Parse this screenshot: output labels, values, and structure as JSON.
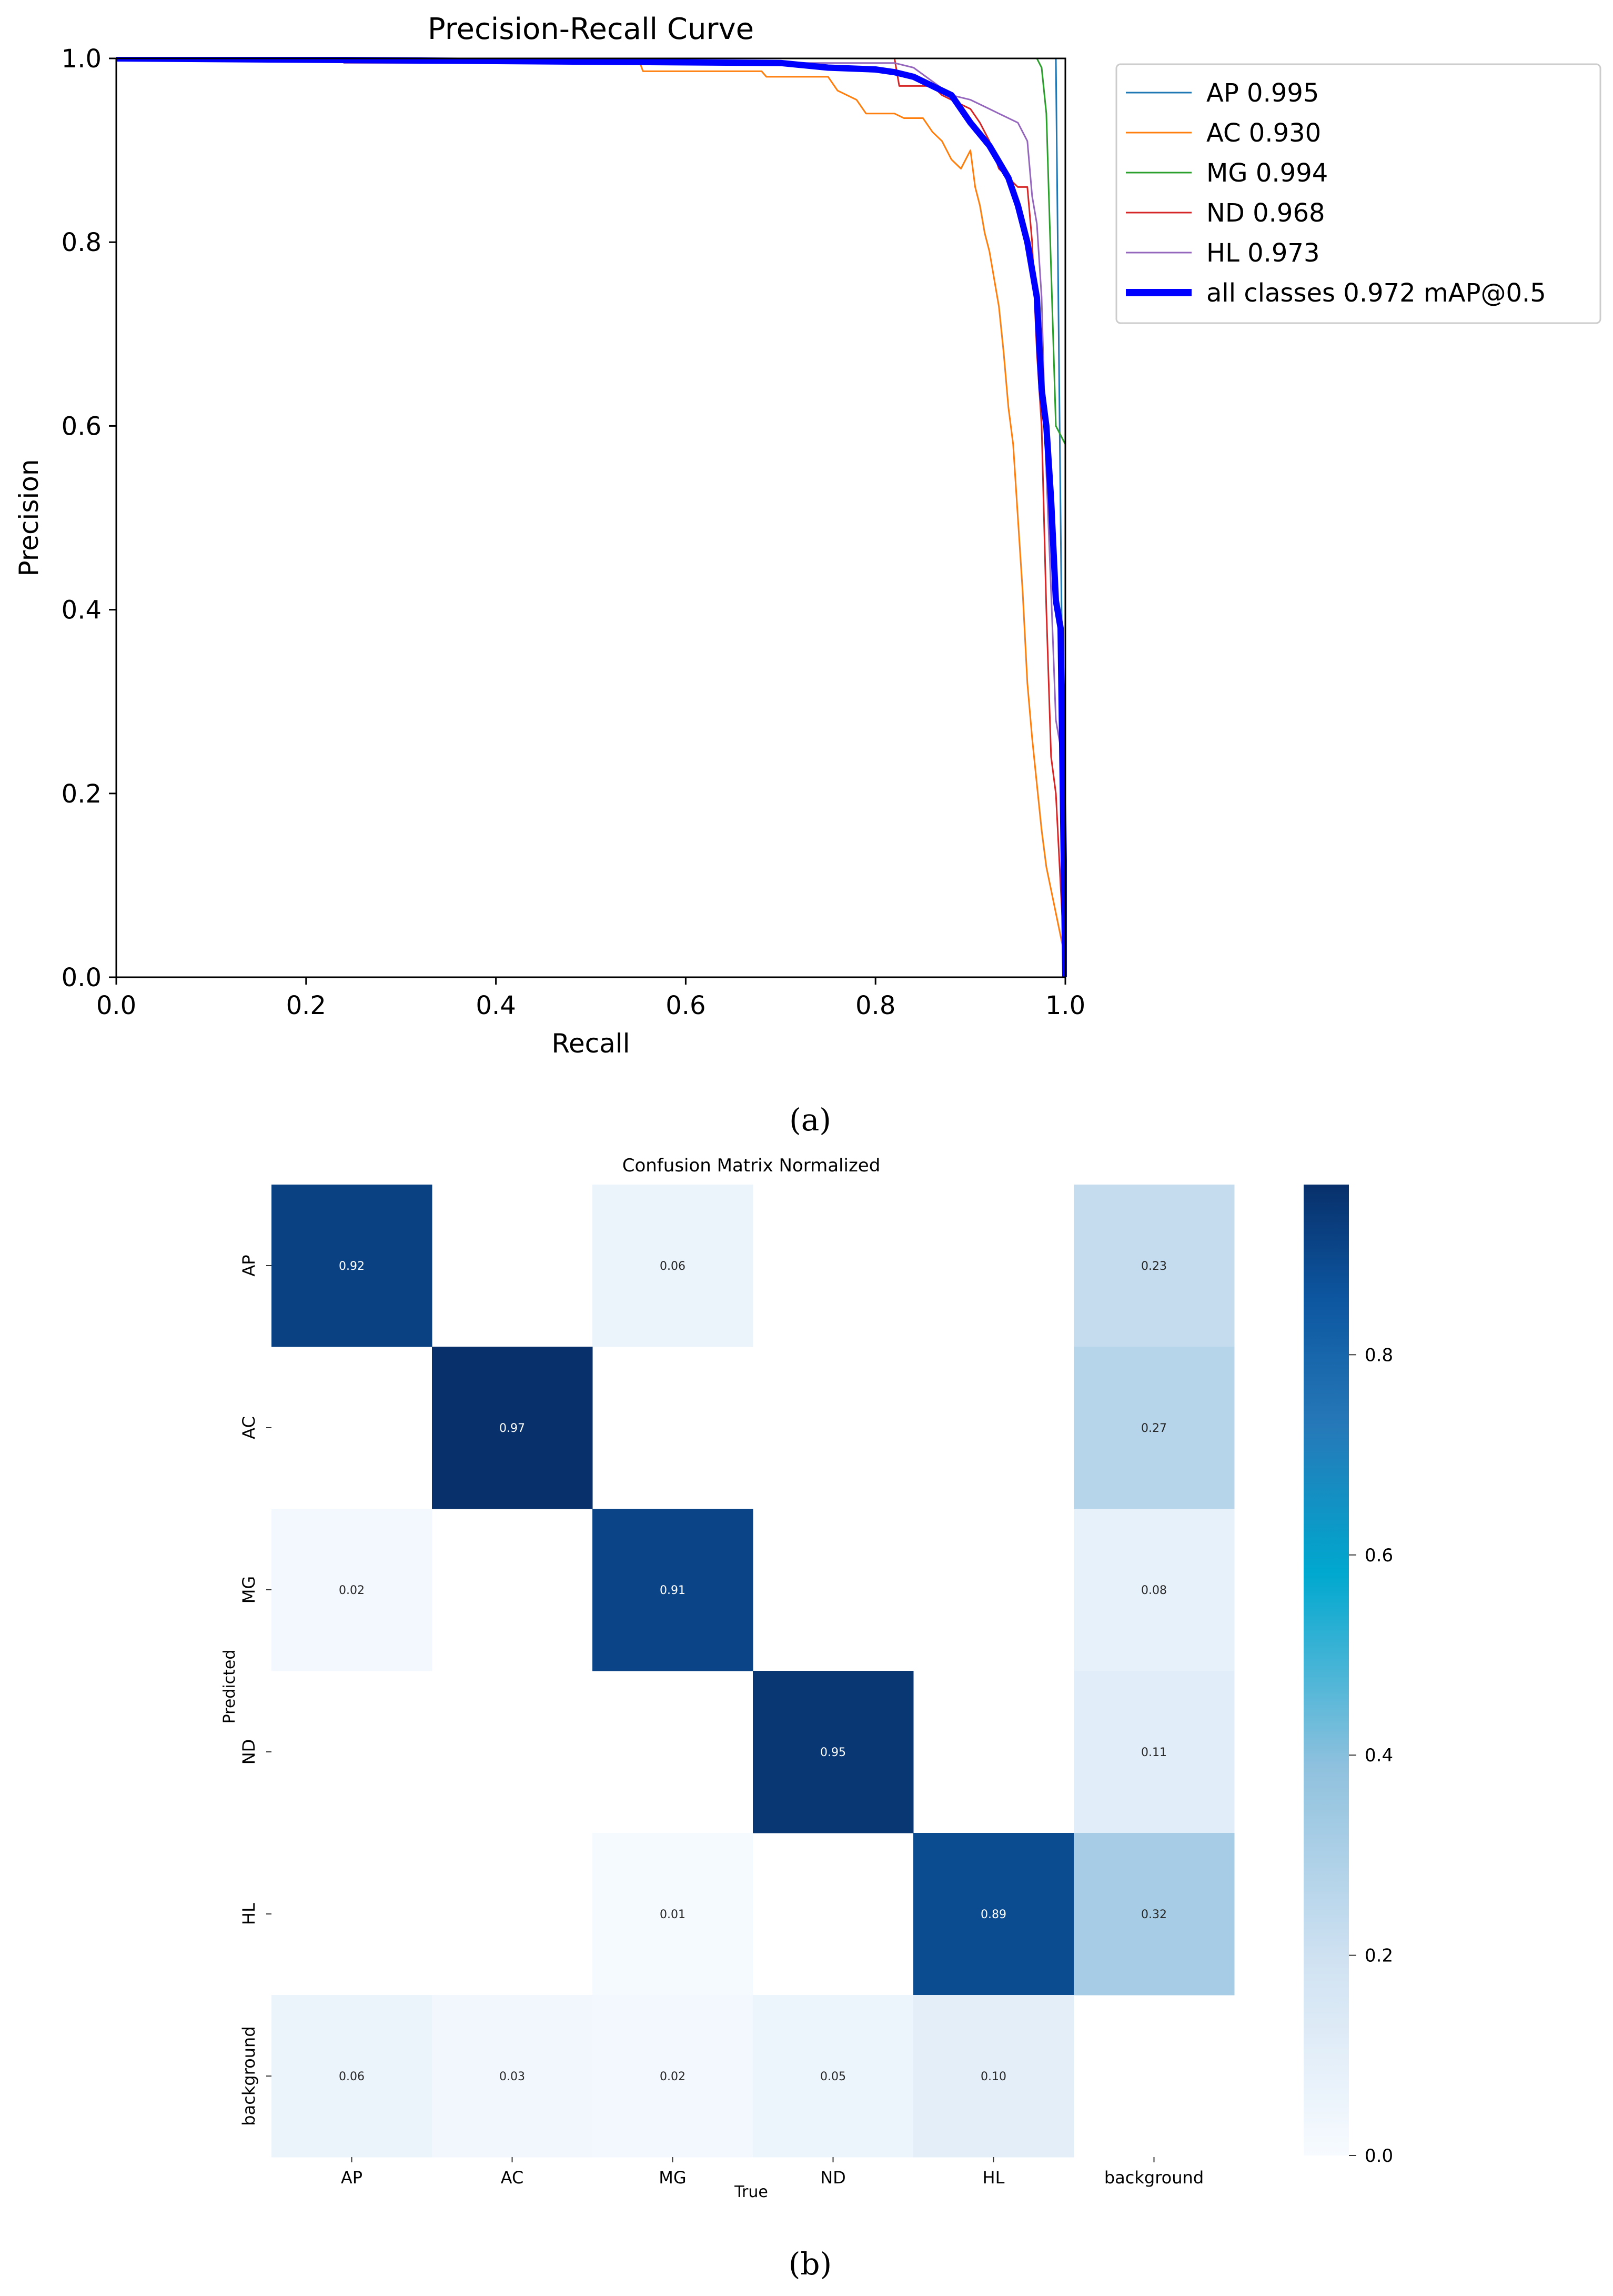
{
  "chart_data": [
    {
      "type": "line",
      "title": "Precision-Recall Curve",
      "xlabel": "Recall",
      "ylabel": "Precision",
      "xlim": [
        0,
        1
      ],
      "ylim": [
        0,
        1
      ],
      "xticks": [
        "0.0",
        "0.2",
        "0.4",
        "0.6",
        "0.8",
        "1.0"
      ],
      "yticks": [
        "0.0",
        "0.2",
        "0.4",
        "0.6",
        "0.8",
        "1.0"
      ],
      "grid": false,
      "legend_position": "outside-right",
      "series": [
        {
          "name": "AP 0.995",
          "color": "#1f77b4",
          "width": 1,
          "points": [
            [
              0,
              1
            ],
            [
              0.99,
              1
            ],
            [
              0.992,
              0.8
            ],
            [
              0.995,
              0.5
            ],
            [
              1.0,
              0.0
            ]
          ]
        },
        {
          "name": "AC 0.930",
          "color": "#ff7f0e",
          "width": 1,
          "points": [
            [
              0,
              1
            ],
            [
              0.55,
              1
            ],
            [
              0.555,
              0.986
            ],
            [
              0.68,
              0.986
            ],
            [
              0.685,
              0.98
            ],
            [
              0.75,
              0.98
            ],
            [
              0.76,
              0.965
            ],
            [
              0.78,
              0.955
            ],
            [
              0.79,
              0.94
            ],
            [
              0.8,
              0.94
            ],
            [
              0.82,
              0.94
            ],
            [
              0.83,
              0.935
            ],
            [
              0.85,
              0.935
            ],
            [
              0.86,
              0.92
            ],
            [
              0.87,
              0.91
            ],
            [
              0.875,
              0.9
            ],
            [
              0.88,
              0.89
            ],
            [
              0.89,
              0.88
            ],
            [
              0.9,
              0.9
            ],
            [
              0.905,
              0.86
            ],
            [
              0.91,
              0.84
            ],
            [
              0.915,
              0.81
            ],
            [
              0.92,
              0.79
            ],
            [
              0.925,
              0.76
            ],
            [
              0.93,
              0.73
            ],
            [
              0.935,
              0.68
            ],
            [
              0.94,
              0.62
            ],
            [
              0.945,
              0.58
            ],
            [
              0.95,
              0.5
            ],
            [
              0.955,
              0.42
            ],
            [
              0.96,
              0.32
            ],
            [
              0.965,
              0.26
            ],
            [
              0.97,
              0.21
            ],
            [
              0.975,
              0.16
            ],
            [
              0.98,
              0.12
            ],
            [
              1.0,
              0.02
            ]
          ]
        },
        {
          "name": "MG 0.994",
          "color": "#2ca02c",
          "width": 1,
          "points": [
            [
              0,
              1
            ],
            [
              0.97,
              1
            ],
            [
              0.975,
              0.99
            ],
            [
              0.98,
              0.94
            ],
            [
              0.99,
              0.6
            ],
            [
              1.0,
              0.58
            ],
            [
              1.0,
              0.0
            ]
          ]
        },
        {
          "name": "ND 0.968",
          "color": "#d62728",
          "width": 1,
          "points": [
            [
              0,
              1
            ],
            [
              0.82,
              1
            ],
            [
              0.825,
              0.97
            ],
            [
              0.86,
              0.97
            ],
            [
              0.87,
              0.96
            ],
            [
              0.88,
              0.955
            ],
            [
              0.9,
              0.945
            ],
            [
              0.91,
              0.93
            ],
            [
              0.92,
              0.91
            ],
            [
              0.93,
              0.88
            ],
            [
              0.94,
              0.87
            ],
            [
              0.95,
              0.86
            ],
            [
              0.96,
              0.86
            ],
            [
              0.965,
              0.8
            ],
            [
              0.97,
              0.68
            ],
            [
              0.975,
              0.6
            ],
            [
              0.98,
              0.4
            ],
            [
              0.985,
              0.24
            ],
            [
              0.99,
              0.2
            ],
            [
              1.0,
              0.0
            ]
          ]
        },
        {
          "name": "HL 0.973",
          "color": "#9467bd",
          "width": 1,
          "points": [
            [
              0,
              1
            ],
            [
              0.24,
              1
            ],
            [
              0.24,
              0.995
            ],
            [
              0.82,
              0.995
            ],
            [
              0.84,
              0.99
            ],
            [
              0.86,
              0.975
            ],
            [
              0.88,
              0.96
            ],
            [
              0.9,
              0.955
            ],
            [
              0.92,
              0.945
            ],
            [
              0.93,
              0.94
            ],
            [
              0.95,
              0.93
            ],
            [
              0.96,
              0.91
            ],
            [
              0.965,
              0.85
            ],
            [
              0.97,
              0.82
            ],
            [
              0.975,
              0.74
            ],
            [
              0.98,
              0.55
            ],
            [
              0.985,
              0.42
            ],
            [
              0.99,
              0.28
            ],
            [
              0.995,
              0.25
            ],
            [
              1.0,
              0.0
            ]
          ]
        },
        {
          "name": "all classes 0.972 mAP@0.5",
          "color": "#0000ff",
          "width": 4,
          "points": [
            [
              0,
              1
            ],
            [
              0.7,
              0.995
            ],
            [
              0.75,
              0.99
            ],
            [
              0.8,
              0.988
            ],
            [
              0.82,
              0.985
            ],
            [
              0.84,
              0.98
            ],
            [
              0.86,
              0.97
            ],
            [
              0.88,
              0.96
            ],
            [
              0.9,
              0.93
            ],
            [
              0.92,
              0.905
            ],
            [
              0.94,
              0.87
            ],
            [
              0.95,
              0.84
            ],
            [
              0.96,
              0.8
            ],
            [
              0.97,
              0.74
            ],
            [
              0.975,
              0.64
            ],
            [
              0.98,
              0.6
            ],
            [
              0.985,
              0.52
            ],
            [
              0.99,
              0.41
            ],
            [
              0.995,
              0.38
            ],
            [
              1.0,
              0.0
            ]
          ]
        }
      ]
    },
    {
      "type": "heatmap",
      "title": "Confusion Matrix Normalized",
      "xlabel": "True",
      "ylabel": "Predicted",
      "x_categories": [
        "AP",
        "AC",
        "MG",
        "ND",
        "HL",
        "background"
      ],
      "y_categories": [
        "AP",
        "AC",
        "MG",
        "ND",
        "HL",
        "background"
      ],
      "values": [
        [
          0.92,
          null,
          0.06,
          null,
          null,
          0.23
        ],
        [
          null,
          0.97,
          null,
          null,
          null,
          0.27
        ],
        [
          0.02,
          null,
          0.91,
          null,
          null,
          0.08
        ],
        [
          null,
          null,
          null,
          0.95,
          null,
          0.11
        ],
        [
          null,
          null,
          0.01,
          null,
          0.89,
          0.32
        ],
        [
          0.06,
          0.03,
          0.02,
          0.05,
          0.1,
          null
        ]
      ],
      "value_labels": [
        [
          "0.92",
          "",
          "0.06",
          "",
          "",
          "0.23"
        ],
        [
          "",
          "0.97",
          "",
          "",
          "",
          "0.27"
        ],
        [
          "0.02",
          "",
          "0.91",
          "",
          "",
          "0.08"
        ],
        [
          "",
          "",
          "",
          "0.95",
          "",
          "0.11"
        ],
        [
          "",
          "",
          "0.01",
          "",
          "0.89",
          "0.32"
        ],
        [
          "0.06",
          "0.03",
          "0.02",
          "0.05",
          "0.10",
          ""
        ]
      ],
      "colorbar": {
        "min": 0.0,
        "max": 0.97,
        "ticks": [
          0.0,
          0.2,
          0.4,
          0.6,
          0.8
        ],
        "tick_labels": [
          "0.0",
          "0.2",
          "0.4",
          "0.6",
          "0.8"
        ],
        "colormap": "Blues"
      }
    }
  ],
  "captions": {
    "a": "(a)",
    "b": "(b)"
  }
}
